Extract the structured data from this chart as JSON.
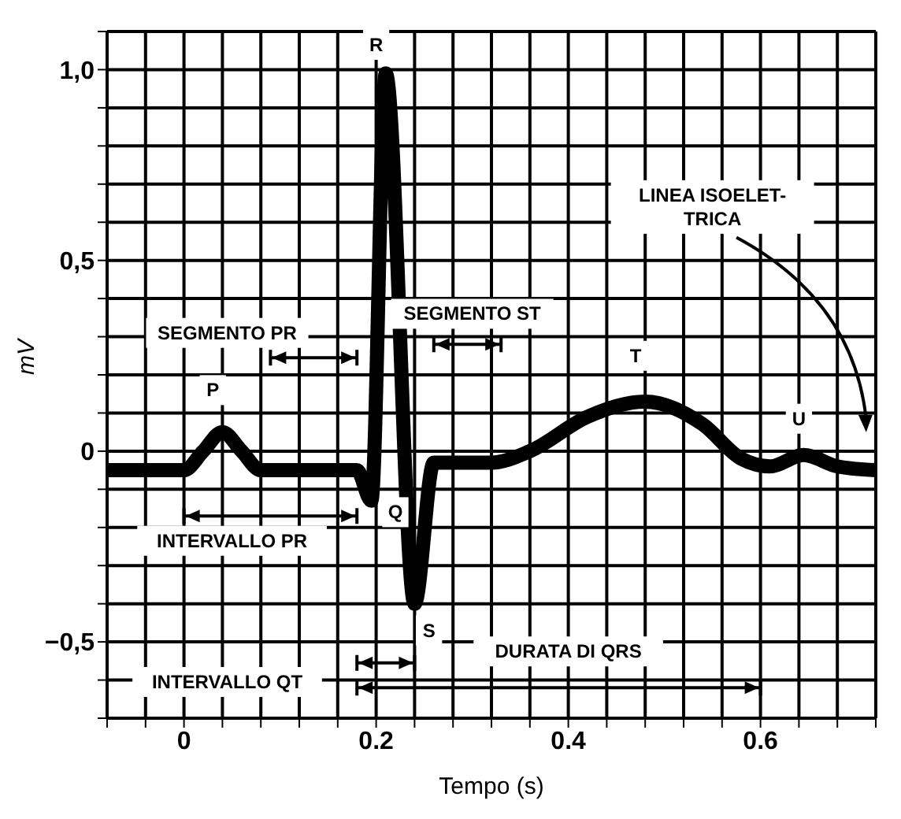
{
  "chart_data": {
    "type": "line",
    "xlabel": "Tempo (s)",
    "ylabel": "mV",
    "x": [
      -0.08,
      0.0,
      0.02,
      0.04,
      0.06,
      0.08,
      0.18,
      0.195,
      0.21,
      0.24,
      0.26,
      0.32,
      0.36,
      0.42,
      0.48,
      0.54,
      0.58,
      0.61,
      0.645,
      0.68,
      0.72
    ],
    "series": [
      {
        "color": "#000000",
        "values": [
          -0.05,
          -0.05,
          0.0,
          0.05,
          0.0,
          -0.05,
          -0.05,
          -0.13,
          0.99,
          -0.4,
          -0.03,
          -0.03,
          0.0,
          0.09,
          0.13,
          0.07,
          -0.02,
          -0.04,
          -0.01,
          -0.04,
          -0.05
        ]
      }
    ],
    "xlim": [
      -0.08,
      0.72
    ],
    "xticks": [
      {
        "value": -0.08,
        "label": null
      },
      {
        "value": -0.04,
        "label": null
      },
      0,
      {
        "value": 0.04,
        "label": null
      },
      {
        "value": 0.08,
        "label": null
      },
      {
        "value": 0.12,
        "label": null
      },
      {
        "value": 0.16,
        "label": null
      },
      0.2,
      {
        "value": 0.24,
        "label": null
      },
      {
        "value": 0.28,
        "label": null
      },
      {
        "value": 0.32,
        "label": null
      },
      {
        "value": 0.36,
        "label": null
      },
      0.4,
      {
        "value": 0.44,
        "label": null
      },
      {
        "value": 0.48,
        "label": null
      },
      {
        "value": 0.52,
        "label": null
      },
      {
        "value": 0.56,
        "label": null
      },
      0.6,
      {
        "value": 0.64,
        "label": null
      },
      {
        "value": 0.68,
        "label": null
      },
      {
        "value": 0.72,
        "label": null
      }
    ],
    "ylim": [
      -0.7,
      1.1
    ],
    "yticks": [
      {
        "value": -0.7,
        "label": null
      },
      {
        "value": -0.6,
        "label": null
      },
      {
        "value": -0.5,
        "label": "−0,5"
      },
      {
        "value": -0.4,
        "label": null
      },
      {
        "value": -0.3,
        "label": null
      },
      {
        "value": -0.2,
        "label": null
      },
      {
        "value": -0.1,
        "label": null
      },
      0,
      {
        "value": 0.1,
        "label": null
      },
      {
        "value": 0.2,
        "label": null
      },
      {
        "value": 0.3,
        "label": null
      },
      {
        "value": 0.4,
        "label": null
      },
      {
        "value": 0.5,
        "label": "0,5"
      },
      {
        "value": 0.6,
        "label": null
      },
      {
        "value": 0.7,
        "label": null
      },
      {
        "value": 0.8,
        "label": null
      },
      {
        "value": 0.9,
        "label": null
      },
      {
        "value": 1.0,
        "label": "1,0"
      },
      {
        "value": 1.1,
        "label": null
      }
    ],
    "grid": true,
    "marker": "none",
    "line_style": "solid",
    "annotations": [
      "P",
      "R",
      "Q",
      "S",
      "T",
      "U",
      "SEGMENTO PR",
      "SEGMENTO ST",
      "INTERVALLO PR",
      "INTERVALLO QT",
      "DURATA DI QRS",
      "LINEA ISOELET-\nTRICA"
    ]
  }
}
